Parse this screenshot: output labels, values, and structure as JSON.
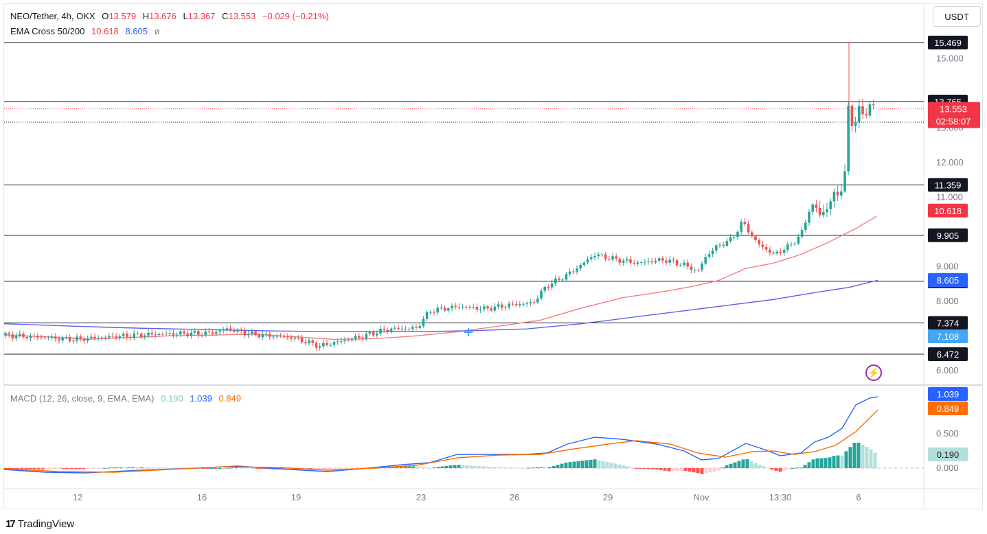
{
  "header": {
    "symbol": "NEO/Tether, 4h, OKX",
    "open_label": "O",
    "open": "13.579",
    "high_label": "H",
    "high": "13.676",
    "low_label": "L",
    "low": "13.367",
    "close_label": "C",
    "close": "13.553",
    "change": "−0.029 (−0.21%)",
    "ema_label": "EMA Cross 50/200",
    "ema50": "10.618",
    "ema200": "8.605",
    "ema_icon": "ø"
  },
  "macd_legend": {
    "label": "MACD (12, 26, close, 9, EMA, EMA)",
    "hist": "0.190",
    "macd": "1.039",
    "signal": "0.849"
  },
  "unit_button": "USDT",
  "branding": {
    "logo": "17",
    "name": "TradingView"
  },
  "colors": {
    "up": "#26a69a",
    "down": "#ef5350",
    "ema50": "#f77c80",
    "ema200": "#5b62f0",
    "macd": "#2962ff",
    "signal": "#ff6d00"
  },
  "price_axis": {
    "ticks": [
      "15.000",
      "13.000",
      "12.000",
      "11.000",
      "9.000",
      "8.000",
      "6.000"
    ],
    "tick_values": [
      15,
      13,
      12,
      11,
      9,
      8,
      6
    ],
    "hlines": [
      "15.469",
      "13.765",
      "11.359",
      "9.905",
      "8.577",
      "7.374",
      "6.472"
    ],
    "hline_values": [
      15.469,
      13.765,
      11.359,
      9.905,
      8.577,
      7.374,
      6.472
    ],
    "last_price": "13.553",
    "countdown": "02:58:07",
    "ema50_tag": "10.618",
    "ema200_tag": "8.605",
    "blue_tag": "7.108"
  },
  "macd_axis": {
    "ticks": [
      "0.500",
      "0.000"
    ],
    "tick_values": [
      0.5,
      0
    ],
    "macd_tag": "1.039",
    "signal_tag": "0.849",
    "hist_tag": "0.190"
  },
  "time_axis": {
    "labels": [
      "12",
      "16",
      "19",
      "23",
      "26",
      "29",
      "Nov",
      "13:30",
      "6"
    ]
  },
  "chart_data": {
    "type": "candlestick",
    "symbol": "NEO/Tether",
    "interval": "4h",
    "y_range": [
      5.6,
      15.9
    ],
    "macd_range": [
      -0.2,
      1.15
    ],
    "ema50_points": [
      [
        0,
        7.02
      ],
      [
        60,
        6.98
      ],
      [
        120,
        6.9
      ],
      [
        180,
        6.95
      ],
      [
        240,
        7.0
      ],
      [
        300,
        7.02
      ],
      [
        360,
        7.05
      ],
      [
        420,
        6.98
      ],
      [
        480,
        6.9
      ],
      [
        540,
        6.92
      ],
      [
        600,
        7.0
      ],
      [
        660,
        7.12
      ],
      [
        720,
        7.28
      ],
      [
        780,
        7.45
      ],
      [
        840,
        7.8
      ],
      [
        900,
        8.1
      ],
      [
        960,
        8.28
      ],
      [
        1000,
        8.42
      ],
      [
        1040,
        8.6
      ],
      [
        1080,
        8.95
      ],
      [
        1120,
        9.1
      ],
      [
        1160,
        9.35
      ],
      [
        1200,
        9.7
      ],
      [
        1240,
        10.1
      ],
      [
        1270,
        10.45
      ]
    ],
    "ema200_points": [
      [
        0,
        7.35
      ],
      [
        100,
        7.28
      ],
      [
        200,
        7.22
      ],
      [
        300,
        7.18
      ],
      [
        400,
        7.14
      ],
      [
        500,
        7.12
      ],
      [
        600,
        7.12
      ],
      [
        680,
        7.15
      ],
      [
        760,
        7.2
      ],
      [
        840,
        7.35
      ],
      [
        920,
        7.55
      ],
      [
        1000,
        7.75
      ],
      [
        1060,
        7.9
      ],
      [
        1120,
        8.05
      ],
      [
        1180,
        8.25
      ],
      [
        1230,
        8.4
      ],
      [
        1272,
        8.605
      ]
    ],
    "macd_points": [
      [
        0,
        -0.02
      ],
      [
        60,
        -0.06
      ],
      [
        120,
        -0.07
      ],
      [
        200,
        -0.03
      ],
      [
        280,
        0.0
      ],
      [
        340,
        0.03
      ],
      [
        400,
        -0.01
      ],
      [
        470,
        -0.05
      ],
      [
        520,
        -0.01
      ],
      [
        580,
        0.05
      ],
      [
        620,
        0.08
      ],
      [
        660,
        0.2
      ],
      [
        700,
        0.2
      ],
      [
        760,
        0.2
      ],
      [
        790,
        0.22
      ],
      [
        820,
        0.35
      ],
      [
        860,
        0.45
      ],
      [
        900,
        0.42
      ],
      [
        950,
        0.35
      ],
      [
        990,
        0.25
      ],
      [
        1015,
        0.12
      ],
      [
        1040,
        0.14
      ],
      [
        1080,
        0.36
      ],
      [
        1110,
        0.26
      ],
      [
        1130,
        0.18
      ],
      [
        1160,
        0.22
      ],
      [
        1180,
        0.38
      ],
      [
        1200,
        0.45
      ],
      [
        1220,
        0.58
      ],
      [
        1240,
        0.92
      ],
      [
        1260,
        1.02
      ],
      [
        1272,
        1.039
      ]
    ],
    "signal_points": [
      [
        0,
        -0.01
      ],
      [
        80,
        -0.05
      ],
      [
        160,
        -0.06
      ],
      [
        240,
        -0.02
      ],
      [
        320,
        0.02
      ],
      [
        400,
        0.01
      ],
      [
        470,
        -0.03
      ],
      [
        540,
        0.0
      ],
      [
        600,
        0.04
      ],
      [
        660,
        0.15
      ],
      [
        720,
        0.19
      ],
      [
        780,
        0.2
      ],
      [
        830,
        0.28
      ],
      [
        880,
        0.35
      ],
      [
        920,
        0.4
      ],
      [
        970,
        0.35
      ],
      [
        1010,
        0.22
      ],
      [
        1050,
        0.16
      ],
      [
        1090,
        0.24
      ],
      [
        1120,
        0.25
      ],
      [
        1150,
        0.2
      ],
      [
        1180,
        0.24
      ],
      [
        1210,
        0.33
      ],
      [
        1240,
        0.53
      ],
      [
        1272,
        0.849
      ]
    ]
  }
}
